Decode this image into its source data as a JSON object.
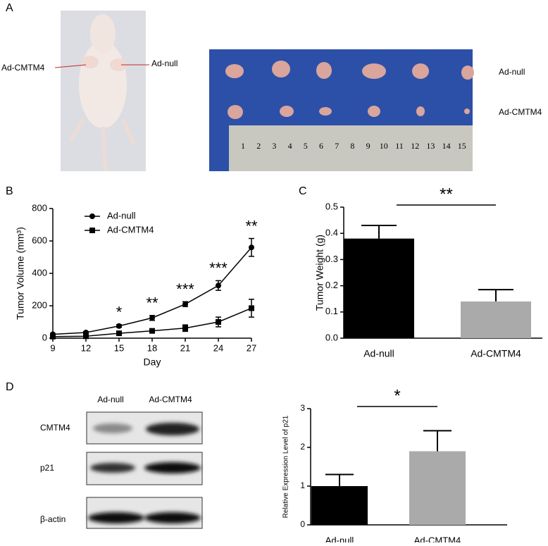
{
  "panel_labels": [
    "A",
    "B",
    "C",
    "D"
  ],
  "mouse_photo": {
    "labels": [
      "Ad-CMTM4",
      "Ad-null"
    ]
  },
  "tumor_photo": {
    "rows": [
      "Ad-null",
      "Ad-CMTM4"
    ],
    "ruler": [
      1,
      2,
      3,
      4,
      5,
      6,
      7,
      8,
      9,
      10,
      11,
      12,
      13,
      14,
      15
    ]
  },
  "western_blot": {
    "lanes": [
      "Ad-null",
      "Ad-CMTM4"
    ],
    "proteins": [
      "CMTM4",
      "p21",
      "β-actin"
    ]
  },
  "chart_data": [
    {
      "type": "line",
      "xlabel": "Day",
      "ylabel": "Tumor Volume (mm³)",
      "x": [
        9,
        12,
        15,
        18,
        21,
        24,
        27
      ],
      "series": [
        {
          "name": "Ad-null",
          "color": "#000000",
          "marker": "circle",
          "values": [
            24,
            35,
            75,
            125,
            210,
            325,
            560
          ],
          "errors": [
            5,
            5,
            8,
            15,
            15,
            30,
            55
          ]
        },
        {
          "name": "Ad-CMTM4",
          "color": "#000000",
          "marker": "square",
          "values": [
            10,
            12,
            30,
            45,
            62,
            100,
            185
          ],
          "errors": [
            3,
            5,
            8,
            8,
            20,
            30,
            55
          ]
        }
      ],
      "annotations": [
        {
          "x": 15,
          "text": "*"
        },
        {
          "x": 18,
          "text": "**"
        },
        {
          "x": 21,
          "text": "***"
        },
        {
          "x": 24,
          "text": "***"
        },
        {
          "x": 27,
          "text": "**"
        }
      ],
      "xlim": [
        9,
        27
      ],
      "xticks": [
        9,
        12,
        15,
        18,
        21,
        24,
        27
      ],
      "ylim": [
        0,
        800
      ],
      "yticks": [
        0,
        200,
        400,
        600,
        800
      ],
      "legend": "upper left"
    },
    {
      "type": "bar",
      "ylabel": "Tumor Weight (g)",
      "categories": [
        "Ad-null",
        "Ad-CMTM4"
      ],
      "values": [
        0.38,
        0.14
      ],
      "errors": [
        0.05,
        0.045
      ],
      "colors": [
        "#000000",
        "#aaaaaa"
      ],
      "annotation": "**",
      "ylim": [
        0,
        0.5
      ],
      "yticks": [
        {
          "value": 0,
          "label": "0.0"
        },
        0.1,
        0.2,
        0.3,
        0.4,
        0.5
      ]
    },
    {
      "type": "bar",
      "ylabel": "Relative Expression Level of p21",
      "categories": [
        "Ad-null",
        "Ad-CMTM4"
      ],
      "values": [
        1.0,
        1.9
      ],
      "errors": [
        0.3,
        0.53
      ],
      "colors": [
        "#000000",
        "#aaaaaa"
      ],
      "annotation": "*",
      "ylim": [
        0,
        3
      ],
      "yticks": [
        0,
        1,
        2,
        3
      ]
    }
  ]
}
